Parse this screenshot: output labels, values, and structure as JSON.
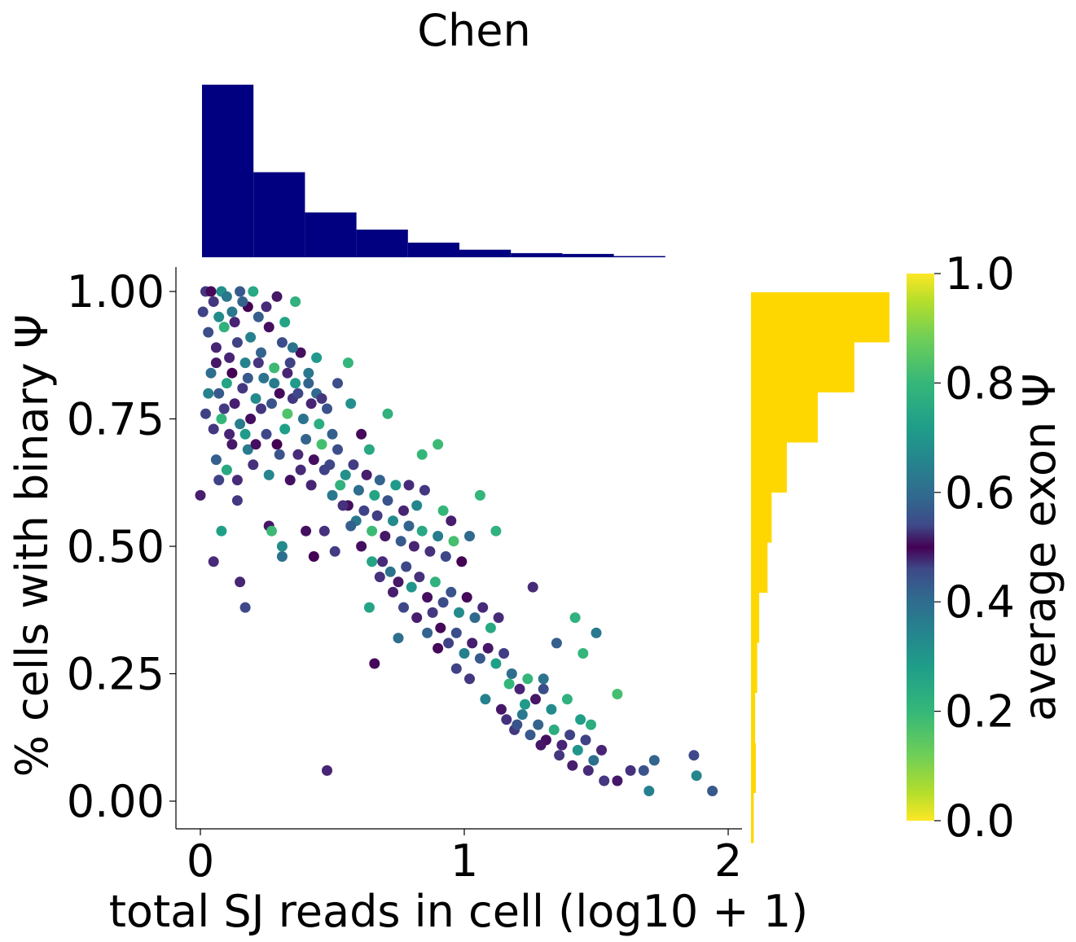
{
  "title": "Chen",
  "chart_data": {
    "type": "scatter",
    "title": "Chen",
    "xlabel": "total SJ reads in cell (log10 + 1)",
    "ylabel": "% cells with binary Ψ",
    "xlim": [
      -0.09,
      2.05
    ],
    "ylim": [
      -0.05,
      1.05
    ],
    "xticks": [
      "0",
      "1",
      "2"
    ],
    "yticks": [
      "0.00",
      "0.25",
      "0.50",
      "0.75",
      "1.00"
    ],
    "grid": false,
    "points": [
      [
        0.02,
        1.0,
        0.58
      ],
      [
        0.05,
        0.98,
        0.42
      ],
      [
        0.08,
        1.0,
        0.75
      ],
      [
        0.12,
        0.96,
        0.3
      ],
      [
        0.15,
        1.0,
        0.64
      ],
      [
        0.18,
        0.97,
        0.5
      ],
      [
        0.2,
        1.0,
        0.8
      ],
      [
        0.22,
        0.95,
        0.35
      ],
      [
        0.03,
        0.92,
        0.62
      ],
      [
        0.06,
        0.89,
        0.45
      ],
      [
        0.09,
        0.93,
        0.82
      ],
      [
        0.11,
        0.87,
        0.55
      ],
      [
        0.14,
        0.9,
        0.4
      ],
      [
        0.17,
        0.86,
        0.72
      ],
      [
        0.19,
        0.91,
        0.28
      ],
      [
        0.23,
        0.88,
        0.66
      ],
      [
        0.26,
        0.93,
        0.52
      ],
      [
        0.28,
        0.85,
        0.84
      ],
      [
        0.31,
        0.9,
        0.38
      ],
      [
        0.34,
        0.86,
        0.6
      ],
      [
        0.36,
        0.82,
        0.77
      ],
      [
        0.38,
        0.88,
        0.48
      ],
      [
        0.41,
        0.84,
        0.7
      ],
      [
        0.44,
        0.8,
        0.33
      ],
      [
        0.04,
        0.84,
        0.68
      ],
      [
        0.07,
        0.8,
        0.36
      ],
      [
        0.1,
        0.82,
        0.79
      ],
      [
        0.13,
        0.78,
        0.46
      ],
      [
        0.16,
        0.81,
        0.58
      ],
      [
        0.21,
        0.79,
        0.74
      ],
      [
        0.24,
        0.83,
        0.31
      ],
      [
        0.27,
        0.78,
        0.63
      ],
      [
        0.3,
        0.8,
        0.51
      ],
      [
        0.33,
        0.76,
        0.86
      ],
      [
        0.35,
        0.79,
        0.42
      ],
      [
        0.39,
        0.75,
        0.69
      ],
      [
        0.42,
        0.78,
        0.55
      ],
      [
        0.45,
        0.74,
        0.81
      ],
      [
        0.48,
        0.77,
        0.37
      ],
      [
        0.5,
        0.72,
        0.65
      ],
      [
        0.02,
        0.76,
        0.4
      ],
      [
        0.05,
        0.73,
        0.58
      ],
      [
        0.08,
        0.75,
        0.83
      ],
      [
        0.12,
        0.7,
        0.47
      ],
      [
        0.15,
        0.74,
        0.71
      ],
      [
        0.18,
        0.69,
        0.29
      ],
      [
        0.25,
        0.72,
        0.61
      ],
      [
        0.29,
        0.7,
        0.5
      ],
      [
        0.32,
        0.73,
        0.78
      ],
      [
        0.37,
        0.68,
        0.44
      ],
      [
        0.4,
        0.71,
        0.66
      ],
      [
        0.43,
        0.67,
        0.52
      ],
      [
        0.46,
        0.7,
        0.85
      ],
      [
        0.49,
        0.66,
        0.39
      ],
      [
        0.52,
        0.69,
        0.62
      ],
      [
        0.55,
        0.64,
        0.75
      ],
      [
        0.06,
        0.67,
        0.35
      ],
      [
        0.1,
        0.65,
        0.8
      ],
      [
        0.14,
        0.63,
        0.56
      ],
      [
        0.2,
        0.66,
        0.43
      ],
      [
        0.26,
        0.64,
        0.73
      ],
      [
        0.34,
        0.63,
        0.48
      ],
      [
        0.47,
        0.65,
        0.6
      ],
      [
        0.53,
        0.62,
        0.82
      ],
      [
        0.58,
        0.66,
        0.41
      ],
      [
        0.6,
        0.61,
        0.68
      ],
      [
        0.63,
        0.64,
        0.54
      ],
      [
        0.66,
        0.6,
        0.79
      ],
      [
        0.68,
        0.63,
        0.34
      ],
      [
        0.71,
        0.59,
        0.63
      ],
      [
        0.74,
        0.62,
        0.77
      ],
      [
        0.77,
        0.57,
        0.45
      ],
      [
        0.56,
        0.58,
        0.52
      ],
      [
        0.59,
        0.55,
        0.7
      ],
      [
        0.62,
        0.57,
        0.4
      ],
      [
        0.65,
        0.53,
        0.84
      ],
      [
        0.67,
        0.56,
        0.59
      ],
      [
        0.7,
        0.52,
        0.47
      ],
      [
        0.73,
        0.55,
        0.74
      ],
      [
        0.76,
        0.51,
        0.36
      ],
      [
        0.79,
        0.54,
        0.66
      ],
      [
        0.81,
        0.5,
        0.55
      ],
      [
        0.84,
        0.53,
        0.8
      ],
      [
        0.87,
        0.49,
        0.43
      ],
      [
        0.9,
        0.52,
        0.71
      ],
      [
        0.93,
        0.48,
        0.61
      ],
      [
        0.96,
        0.51,
        0.85
      ],
      [
        0.99,
        0.47,
        0.5
      ],
      [
        0.69,
        0.47,
        0.44
      ],
      [
        0.72,
        0.45,
        0.69
      ],
      [
        0.75,
        0.43,
        0.53
      ],
      [
        0.78,
        0.46,
        0.39
      ],
      [
        0.8,
        0.42,
        0.76
      ],
      [
        0.83,
        0.44,
        0.57
      ],
      [
        0.86,
        0.4,
        0.48
      ],
      [
        0.89,
        0.43,
        0.82
      ],
      [
        0.92,
        0.39,
        0.62
      ],
      [
        0.95,
        0.41,
        0.37
      ],
      [
        0.98,
        0.37,
        0.74
      ],
      [
        1.01,
        0.4,
        0.51
      ],
      [
        1.04,
        0.36,
        0.67
      ],
      [
        1.07,
        0.38,
        0.44
      ],
      [
        1.1,
        0.34,
        0.8
      ],
      [
        1.13,
        0.36,
        0.56
      ],
      [
        0.88,
        0.37,
        0.42
      ],
      [
        0.91,
        0.34,
        0.49
      ],
      [
        0.94,
        0.31,
        0.6
      ],
      [
        0.97,
        0.33,
        0.38
      ],
      [
        1.0,
        0.29,
        0.72
      ],
      [
        1.03,
        0.31,
        0.46
      ],
      [
        1.06,
        0.28,
        0.64
      ],
      [
        1.09,
        0.3,
        0.53
      ],
      [
        1.12,
        0.27,
        0.78
      ],
      [
        1.15,
        0.29,
        0.41
      ],
      [
        1.18,
        0.25,
        0.68
      ],
      [
        1.21,
        0.22,
        0.55
      ],
      [
        1.24,
        0.24,
        0.83
      ],
      [
        1.27,
        0.2,
        0.47
      ],
      [
        1.3,
        0.22,
        0.62
      ],
      [
        1.33,
        0.18,
        0.74
      ],
      [
        1.16,
        0.16,
        0.43
      ],
      [
        1.19,
        0.14,
        0.58
      ],
      [
        1.22,
        0.17,
        0.7
      ],
      [
        1.25,
        0.13,
        0.36
      ],
      [
        1.28,
        0.15,
        0.66
      ],
      [
        1.31,
        0.12,
        0.52
      ],
      [
        1.34,
        0.14,
        0.81
      ],
      [
        1.37,
        0.11,
        0.45
      ],
      [
        1.4,
        0.13,
        0.6
      ],
      [
        1.43,
        0.1,
        0.76
      ],
      [
        1.46,
        0.12,
        0.4
      ],
      [
        1.49,
        0.08,
        0.68
      ],
      [
        1.52,
        0.1,
        0.55
      ],
      [
        1.41,
        0.07,
        0.46
      ],
      [
        1.47,
        0.06,
        0.44
      ],
      [
        1.53,
        0.04,
        0.42
      ],
      [
        1.58,
        0.04,
        0.47
      ],
      [
        1.63,
        0.06,
        0.57
      ],
      [
        1.68,
        0.06,
        0.63
      ],
      [
        1.7,
        0.02,
        0.72
      ],
      [
        1.72,
        0.08,
        0.66
      ],
      [
        1.87,
        0.09,
        0.61
      ],
      [
        1.88,
        0.05,
        0.73
      ],
      [
        1.94,
        0.02,
        0.64
      ],
      [
        1.42,
        0.36,
        0.82
      ],
      [
        1.5,
        0.33,
        0.7
      ],
      [
        1.58,
        0.21,
        0.85
      ],
      [
        1.45,
        0.29,
        0.83
      ],
      [
        1.35,
        0.31,
        0.65
      ],
      [
        1.26,
        0.42,
        0.44
      ],
      [
        1.06,
        0.6,
        0.83
      ],
      [
        1.12,
        0.53,
        0.82
      ],
      [
        0.36,
        0.98,
        0.82
      ],
      [
        0.29,
        0.99,
        0.47
      ],
      [
        0.56,
        0.86,
        0.83
      ],
      [
        0.71,
        0.76,
        0.82
      ],
      [
        0.9,
        0.7,
        0.84
      ],
      [
        0.84,
        0.68,
        0.83
      ],
      [
        0.64,
        0.38,
        0.79
      ],
      [
        0.75,
        0.32,
        0.68
      ],
      [
        0.66,
        0.27,
        0.49
      ],
      [
        0.48,
        0.06,
        0.55
      ],
      [
        0.17,
        0.38,
        0.61
      ],
      [
        0.15,
        0.43,
        0.55
      ],
      [
        0.05,
        0.47,
        0.56
      ],
      [
        0.26,
        0.54,
        0.47
      ],
      [
        0.14,
        0.59,
        0.42
      ],
      [
        0.0,
        0.6,
        0.46
      ],
      [
        0.08,
        0.53,
        0.78
      ],
      [
        0.27,
        0.53,
        0.84
      ],
      [
        0.31,
        0.48,
        0.68
      ],
      [
        0.31,
        0.5,
        0.74
      ],
      [
        0.4,
        0.53,
        0.52
      ],
      [
        0.43,
        0.48,
        0.5
      ],
      [
        0.51,
        0.49,
        0.59
      ],
      [
        0.47,
        0.53,
        0.57
      ],
      [
        0.07,
        0.63,
        0.6
      ],
      [
        0.11,
        0.72,
        0.45
      ],
      [
        0.19,
        0.75,
        0.52
      ],
      [
        0.23,
        0.77,
        0.58
      ],
      [
        0.35,
        0.89,
        0.69
      ],
      [
        0.44,
        0.87,
        0.77
      ],
      [
        0.52,
        0.82,
        0.62
      ],
      [
        0.57,
        0.78,
        0.75
      ],
      [
        0.61,
        0.72,
        0.51
      ],
      [
        0.64,
        0.69,
        0.8
      ],
      [
        0.79,
        0.62,
        0.56
      ],
      [
        0.82,
        0.58,
        0.73
      ],
      [
        0.85,
        0.61,
        0.58
      ],
      [
        0.92,
        0.57,
        0.83
      ],
      [
        0.95,
        0.55,
        0.46
      ],
      [
        1.02,
        0.52,
        0.67
      ],
      [
        0.01,
        0.96,
        0.6
      ],
      [
        0.04,
        1.0,
        0.49
      ],
      [
        0.1,
        0.99,
        0.7
      ],
      [
        0.13,
        0.94,
        0.45
      ],
      [
        0.16,
        0.98,
        0.66
      ],
      [
        0.07,
        0.95,
        0.74
      ],
      [
        0.25,
        0.97,
        0.56
      ],
      [
        0.32,
        0.94,
        0.79
      ],
      [
        0.12,
        0.84,
        0.5
      ],
      [
        0.18,
        0.83,
        0.64
      ],
      [
        0.22,
        0.86,
        0.42
      ],
      [
        0.28,
        0.82,
        0.71
      ],
      [
        0.33,
        0.84,
        0.55
      ],
      [
        0.37,
        0.8,
        0.39
      ],
      [
        0.41,
        0.82,
        0.66
      ],
      [
        0.46,
        0.79,
        0.58
      ],
      [
        0.03,
        0.8,
        0.72
      ],
      [
        0.06,
        0.86,
        0.53
      ],
      [
        0.09,
        0.77,
        0.41
      ],
      [
        0.17,
        0.72,
        0.77
      ],
      [
        0.21,
        0.7,
        0.48
      ],
      [
        0.3,
        0.68,
        0.63
      ],
      [
        0.38,
        0.65,
        0.56
      ],
      [
        0.42,
        0.62,
        0.45
      ],
      [
        0.5,
        0.6,
        0.7
      ],
      [
        0.54,
        0.58,
        0.43
      ],
      [
        0.57,
        0.54,
        0.65
      ],
      [
        0.61,
        0.5,
        0.48
      ],
      [
        0.65,
        0.47,
        0.79
      ],
      [
        0.68,
        0.44,
        0.57
      ],
      [
        0.73,
        0.41,
        0.46
      ],
      [
        0.77,
        0.38,
        0.61
      ],
      [
        0.82,
        0.36,
        0.54
      ],
      [
        0.86,
        0.33,
        0.66
      ],
      [
        0.9,
        0.3,
        0.49
      ],
      [
        0.97,
        0.26,
        0.4
      ],
      [
        1.02,
        0.24,
        0.58
      ],
      [
        1.08,
        0.2,
        0.72
      ],
      [
        1.14,
        0.18,
        0.47
      ],
      [
        1.2,
        0.15,
        0.63
      ],
      [
        1.29,
        0.11,
        0.53
      ],
      [
        1.36,
        0.09,
        0.58
      ],
      [
        1.44,
        0.16,
        0.78
      ],
      [
        1.48,
        0.15,
        0.81
      ],
      [
        1.39,
        0.2,
        0.82
      ],
      [
        1.3,
        0.24,
        0.69
      ],
      [
        1.23,
        0.19,
        0.77
      ],
      [
        1.17,
        0.23,
        0.83
      ]
    ],
    "x_histogram": {
      "edges": [
        0.0,
        0.2,
        0.4,
        0.6,
        0.8,
        1.0,
        1.2,
        1.4,
        1.6,
        1.8
      ],
      "counts": [
        412,
        203,
        107,
        66,
        35,
        18,
        10,
        8,
        3
      ],
      "color": "#000080"
    },
    "y_histogram": {
      "edges": [
        0.0,
        0.1,
        0.2,
        0.3,
        0.4,
        0.5,
        0.6,
        0.7,
        0.8,
        0.9,
        1.0
      ],
      "counts": [
        4,
        7,
        6,
        9,
        12,
        24,
        30,
        52,
        97,
        150,
        201
      ],
      "color": "#FFD700"
    },
    "colorbar": {
      "label": "average exon Ψ",
      "ticks": [
        "0.0",
        "0.2",
        "0.4",
        "0.6",
        "0.8",
        "1.0"
      ],
      "colormap": "viridis-mirrored"
    }
  }
}
